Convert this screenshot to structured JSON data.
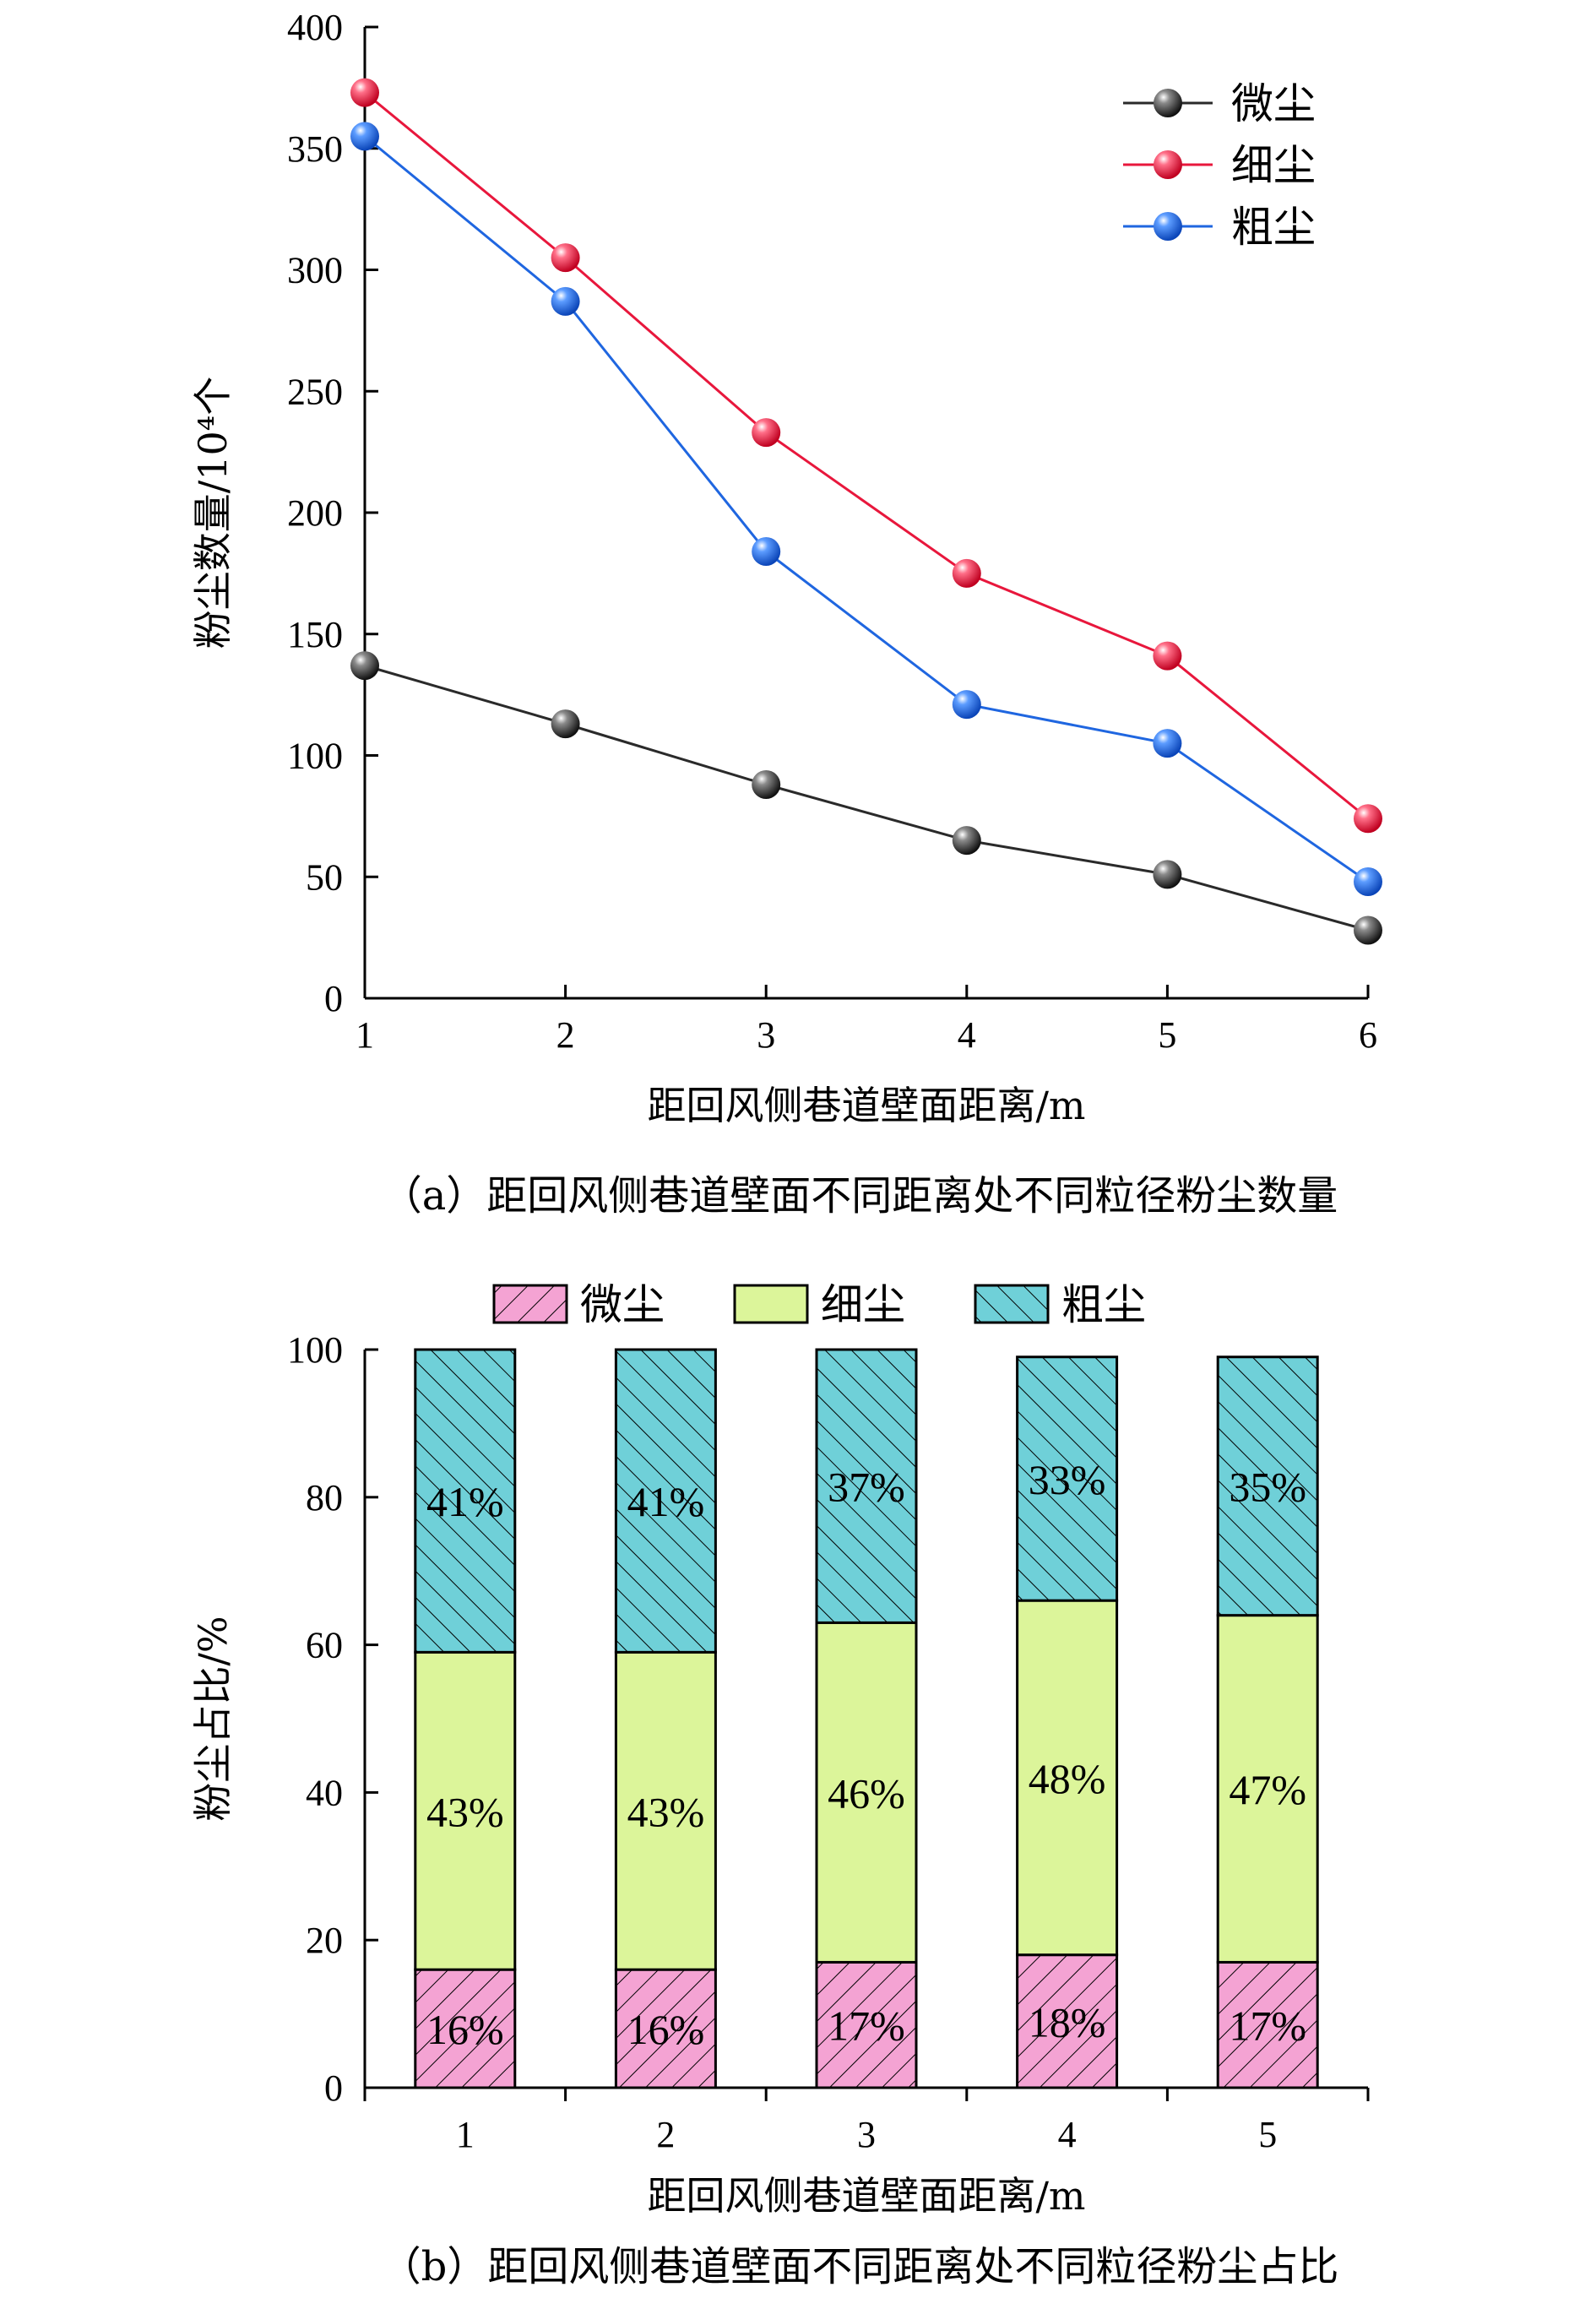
{
  "chart_data": [
    {
      "type": "line",
      "x": [
        1,
        2,
        3,
        4,
        5,
        6
      ],
      "series": [
        {
          "name": "微尘",
          "color": "#2a2a2a",
          "values": [
            137,
            113,
            88,
            65,
            51,
            28
          ]
        },
        {
          "name": "细尘",
          "color": "#e8173c",
          "values": [
            373,
            305,
            233,
            175,
            141,
            74
          ]
        },
        {
          "name": "粗尘",
          "color": "#1f66e0",
          "values": [
            355,
            287,
            184,
            121,
            105,
            48
          ]
        }
      ],
      "xlabel": "距回风侧巷道壁面距离/m",
      "ylabel": "粉尘数量/10⁴个",
      "ylim": [
        0,
        400
      ],
      "yticks": [
        0,
        50,
        100,
        150,
        200,
        250,
        300,
        350,
        400
      ],
      "xticks": [
        1,
        2,
        3,
        4,
        5,
        6
      ],
      "legend_position": "top-right",
      "caption": "（a）距回风侧巷道壁面不同距离处不同粒径粉尘数量"
    },
    {
      "type": "bar",
      "stacked": true,
      "categories": [
        "1",
        "2",
        "3",
        "4",
        "5"
      ],
      "series": [
        {
          "name": "微尘",
          "color": "#f4a3d3",
          "values": [
            16,
            16,
            17,
            18,
            17
          ],
          "labels": [
            "16%",
            "16%",
            "17%",
            "18%",
            "17%"
          ]
        },
        {
          "name": "细尘",
          "color": "#dcf59a",
          "values": [
            43,
            43,
            46,
            48,
            47
          ],
          "labels": [
            "43%",
            "43%",
            "46%",
            "48%",
            "47%"
          ]
        },
        {
          "name": "粗尘",
          "color": "#6fd0d8",
          "values": [
            41,
            41,
            37,
            33,
            35
          ],
          "labels": [
            "41%",
            "41%",
            "37%",
            "33%",
            "35%"
          ]
        }
      ],
      "xlabel": "距回风侧巷道壁面距离/m",
      "ylabel": "粉尘占比/%",
      "ylim": [
        0,
        100
      ],
      "yticks": [
        0,
        20,
        40,
        60,
        80,
        100
      ],
      "legend_position": "top",
      "caption": "（b）距回风侧巷道壁面不同距离处不同粒径粉尘占比"
    }
  ]
}
